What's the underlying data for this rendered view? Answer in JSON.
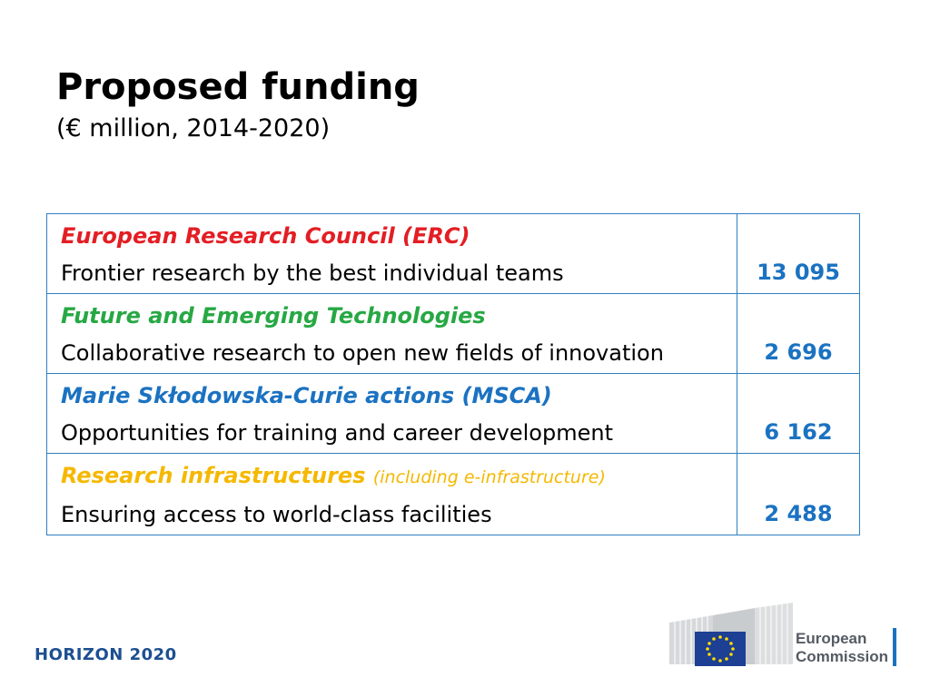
{
  "slide": {
    "title": "Proposed funding",
    "subtitle": "(€ million, 2014-2020)"
  },
  "rows": [
    {
      "heading": "European Research Council (ERC)",
      "heading_note": "",
      "heading_color": "#e31e24",
      "description": "Frontier research by the best individual teams",
      "value": "13 095"
    },
    {
      "heading": "Future and Emerging Technologies",
      "heading_note": "",
      "heading_color": "#27a844",
      "description": "Collaborative research to open new fields of innovation",
      "value": "2 696"
    },
    {
      "heading": "Marie Skłodowska-Curie actions (MSCA)",
      "heading_note": "",
      "heading_color": "#1b72c1",
      "description": "Opportunities for training and career development",
      "value": "6 162"
    },
    {
      "heading": "Research infrastructures",
      "heading_note": "(including e-infrastructure)",
      "heading_color": "#f5b800",
      "description": "Ensuring access to world-class facilities",
      "value": "2 488"
    }
  ],
  "footer": {
    "program": "HORIZON 2020",
    "logo_line1": "European",
    "logo_line2": "Commission"
  },
  "colors": {
    "border": "#2f7fc1",
    "value": "#1b72c1",
    "eu_flag": "#1d3f94",
    "eu_stars": "#ffdd00"
  }
}
